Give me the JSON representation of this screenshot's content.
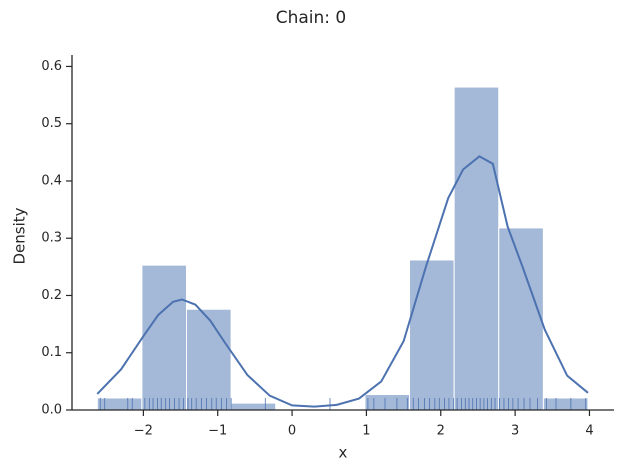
{
  "chart_data": {
    "type": "histogram",
    "title": "Chain: 0",
    "xlabel": "x",
    "ylabel": "Density",
    "bins": [
      -2.62,
      -2.02,
      -1.42,
      -0.82,
      -0.22,
      0.38,
      0.98,
      1.58,
      2.18,
      2.78,
      3.38,
      3.98
    ],
    "values": [
      0.021,
      0.253,
      0.176,
      0.012,
      0,
      0,
      0.027,
      0.262,
      0.564,
      0.318,
      0.021
    ],
    "color": "#a4b8d8",
    "kde": {
      "color": "#4c72b0",
      "x": [
        -2.62,
        -2.3,
        -2.0,
        -1.8,
        -1.6,
        -1.48,
        -1.3,
        -1.1,
        -0.9,
        -0.6,
        -0.3,
        0,
        0.3,
        0.6,
        0.9,
        1.2,
        1.5,
        1.8,
        2.1,
        2.3,
        2.52,
        2.7,
        2.9,
        3.1,
        3.4,
        3.7,
        3.98
      ],
      "values": [
        0.028,
        0.071,
        0.129,
        0.166,
        0.189,
        0.193,
        0.184,
        0.156,
        0.117,
        0.061,
        0.025,
        0.008,
        0.006,
        0.009,
        0.02,
        0.05,
        0.12,
        0.25,
        0.37,
        0.42,
        0.443,
        0.43,
        0.32,
        0.25,
        0.14,
        0.06,
        0.03
      ]
    },
    "rug": [
      -2.58,
      -2.52,
      -2.21,
      -2.15,
      -1.98,
      -1.92,
      -1.87,
      -1.81,
      -1.76,
      -1.7,
      -1.65,
      -1.58,
      -1.52,
      -1.46,
      -1.4,
      -1.35,
      -1.29,
      -1.22,
      -1.15,
      -1.08,
      -1.02,
      -0.95,
      -0.88,
      -0.82,
      -0.36,
      0.51,
      1.02,
      1.1,
      1.25,
      1.41,
      1.55,
      1.63,
      1.7,
      1.78,
      1.85,
      1.92,
      1.98,
      2.05,
      2.11,
      2.17,
      2.22,
      2.28,
      2.33,
      2.38,
      2.43,
      2.48,
      2.53,
      2.58,
      2.63,
      2.68,
      2.73,
      2.79,
      2.85,
      2.91,
      2.97,
      3.04,
      3.12,
      3.2,
      3.3,
      3.42,
      3.55,
      3.75,
      3.95
    ],
    "xlim": [
      -2.96,
      4.33
    ],
    "ylim": [
      0,
      0.62
    ],
    "xticks": [
      {
        "value": -2,
        "label": "−2"
      },
      {
        "value": -1,
        "label": "−1"
      },
      0,
      1,
      2,
      3,
      4
    ],
    "yticks": [
      {
        "value": 0,
        "label": "0.0"
      },
      {
        "value": 0.1,
        "label": "0.1"
      },
      {
        "value": 0.2,
        "label": "0.2"
      },
      {
        "value": 0.3,
        "label": "0.3"
      },
      {
        "value": 0.4,
        "label": "0.4"
      },
      {
        "value": 0.5,
        "label": "0.5"
      },
      {
        "value": 0.6,
        "label": "0.6"
      }
    ]
  }
}
